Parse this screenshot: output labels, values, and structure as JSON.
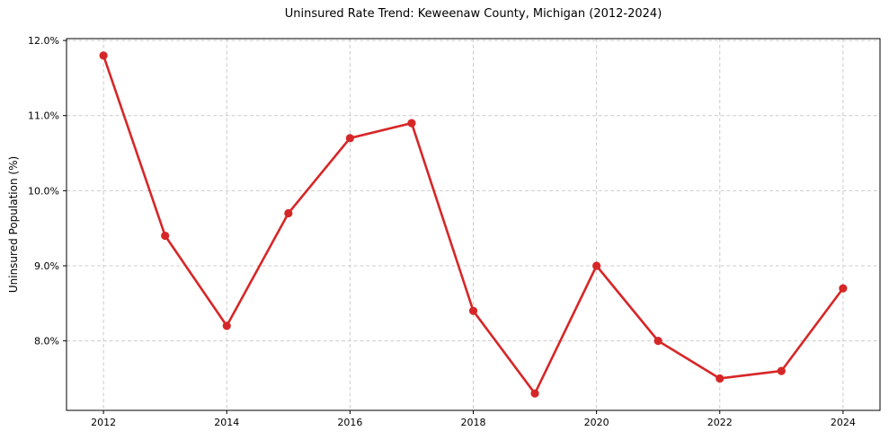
{
  "chart_data": {
    "type": "line",
    "title": "Uninsured Rate Trend: Keweenaw County, Michigan (2012-2024)",
    "xlabel": "",
    "ylabel": "Uninsured Population (%)",
    "x": [
      2012,
      2013,
      2014,
      2015,
      2016,
      2017,
      2018,
      2019,
      2020,
      2021,
      2022,
      2023,
      2024
    ],
    "series": [
      {
        "name": "Uninsured Rate",
        "values": [
          11.8,
          9.4,
          8.2,
          9.7,
          10.7,
          10.9,
          8.4,
          7.3,
          9.0,
          8.0,
          7.5,
          7.6,
          8.7
        ],
        "color": "#d62728",
        "marker": "circle",
        "line_width": 2.6,
        "marker_radius": 4.6
      }
    ],
    "xlim": [
      2011.4,
      2024.6
    ],
    "ylim": [
      7.075,
      12.025
    ],
    "xticks": [
      2012,
      2014,
      2016,
      2018,
      2020,
      2022,
      2024
    ],
    "xtick_labels": [
      "2012",
      "2014",
      "2016",
      "2018",
      "2020",
      "2022",
      "2024"
    ],
    "yticks": [
      8,
      9,
      10,
      11,
      12
    ],
    "ytick_labels": [
      "8.0%",
      "9.0%",
      "10.0%",
      "11.0%",
      "12.0%"
    ],
    "grid": true,
    "grid_color": "#cccccc",
    "grid_style": "dashed",
    "spine_color": "#000000",
    "background_color": "#ffffff",
    "legend": "none"
  }
}
